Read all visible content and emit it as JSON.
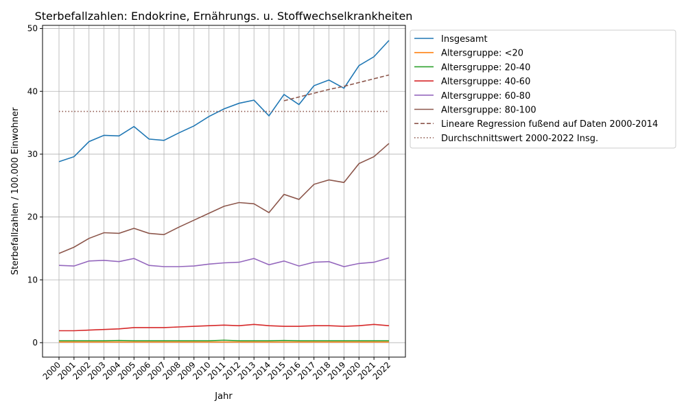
{
  "chart_data": {
    "type": "line",
    "title": "Sterbefallzahlen: Endokrine, Ernährungs. u. Stoffwechselkrankheiten",
    "xlabel": "Jahr",
    "ylabel": "Sterbefallzahlen / 100.000 Einwohner",
    "ylim": [
      -2.3,
      50.5
    ],
    "yticks": [
      0,
      10,
      20,
      30,
      40,
      50
    ],
    "grid": true,
    "legend_position": "outside-top-right",
    "x": [
      2000,
      2001,
      2002,
      2003,
      2004,
      2005,
      2006,
      2007,
      2008,
      2009,
      2010,
      2011,
      2012,
      2013,
      2014,
      2015,
      2016,
      2017,
      2018,
      2019,
      2020,
      2021,
      2022
    ],
    "series": [
      {
        "name": "Insgesamt",
        "color": "#1f77b4",
        "style": "solid",
        "values": [
          28.8,
          29.6,
          32.0,
          33.0,
          32.9,
          34.4,
          32.4,
          32.2,
          33.4,
          34.5,
          36.0,
          37.2,
          38.1,
          38.6,
          36.1,
          39.5,
          37.9,
          40.9,
          41.8,
          40.5,
          44.1,
          45.5,
          48.1
        ]
      },
      {
        "name": "Altersgruppe: <20",
        "color": "#ff7f0e",
        "style": "solid",
        "values": [
          0.1,
          0.1,
          0.1,
          0.1,
          0.1,
          0.1,
          0.1,
          0.1,
          0.1,
          0.1,
          0.1,
          0.1,
          0.1,
          0.1,
          0.1,
          0.1,
          0.1,
          0.1,
          0.1,
          0.1,
          0.1,
          0.1,
          0.1
        ]
      },
      {
        "name": "Altersgruppe: 20-40",
        "color": "#2ca02c",
        "style": "solid",
        "values": [
          0.3,
          0.3,
          0.3,
          0.3,
          0.35,
          0.3,
          0.3,
          0.3,
          0.3,
          0.3,
          0.3,
          0.4,
          0.3,
          0.3,
          0.3,
          0.35,
          0.3,
          0.3,
          0.3,
          0.3,
          0.3,
          0.3,
          0.3
        ]
      },
      {
        "name": "Altersgruppe: 40-60",
        "color": "#d62728",
        "style": "solid",
        "values": [
          1.9,
          1.9,
          2.0,
          2.1,
          2.2,
          2.4,
          2.4,
          2.4,
          2.5,
          2.6,
          2.7,
          2.8,
          2.7,
          2.9,
          2.7,
          2.6,
          2.6,
          2.7,
          2.7,
          2.6,
          2.7,
          2.9,
          2.7
        ]
      },
      {
        "name": "Altersgruppe: 60-80",
        "color": "#9467bd",
        "style": "solid",
        "values": [
          12.3,
          12.2,
          13.0,
          13.1,
          12.9,
          13.4,
          12.3,
          12.1,
          12.1,
          12.2,
          12.5,
          12.7,
          12.8,
          13.4,
          12.4,
          13.0,
          12.2,
          12.8,
          12.9,
          12.1,
          12.6,
          12.8,
          13.5
        ]
      },
      {
        "name": "Altersgruppe: 80-100",
        "color": "#8c564b",
        "style": "solid",
        "values": [
          14.2,
          15.2,
          16.6,
          17.5,
          17.4,
          18.2,
          17.4,
          17.2,
          18.4,
          19.5,
          20.6,
          21.7,
          22.3,
          22.1,
          20.7,
          23.6,
          22.8,
          25.2,
          25.9,
          25.5,
          28.5,
          29.6,
          31.7
        ]
      },
      {
        "name": "Lineare Regression fußend auf Daten 2000-2014",
        "color": "#8c564b",
        "style": "dashed",
        "values": [
          null,
          null,
          null,
          null,
          null,
          null,
          null,
          null,
          null,
          null,
          null,
          null,
          null,
          null,
          null,
          38.5,
          39.1,
          39.7,
          40.3,
          40.8,
          41.4,
          42.0,
          42.6
        ]
      },
      {
        "name": "Durchschnittswert 2000-2022 Insg.",
        "color": "#8c564b",
        "style": "dotted",
        "values": [
          36.8,
          36.8,
          36.8,
          36.8,
          36.8,
          36.8,
          36.8,
          36.8,
          36.8,
          36.8,
          36.8,
          36.8,
          36.8,
          36.8,
          36.8,
          36.8,
          36.8,
          36.8,
          36.8,
          36.8,
          36.8,
          36.8,
          36.8
        ]
      }
    ]
  }
}
